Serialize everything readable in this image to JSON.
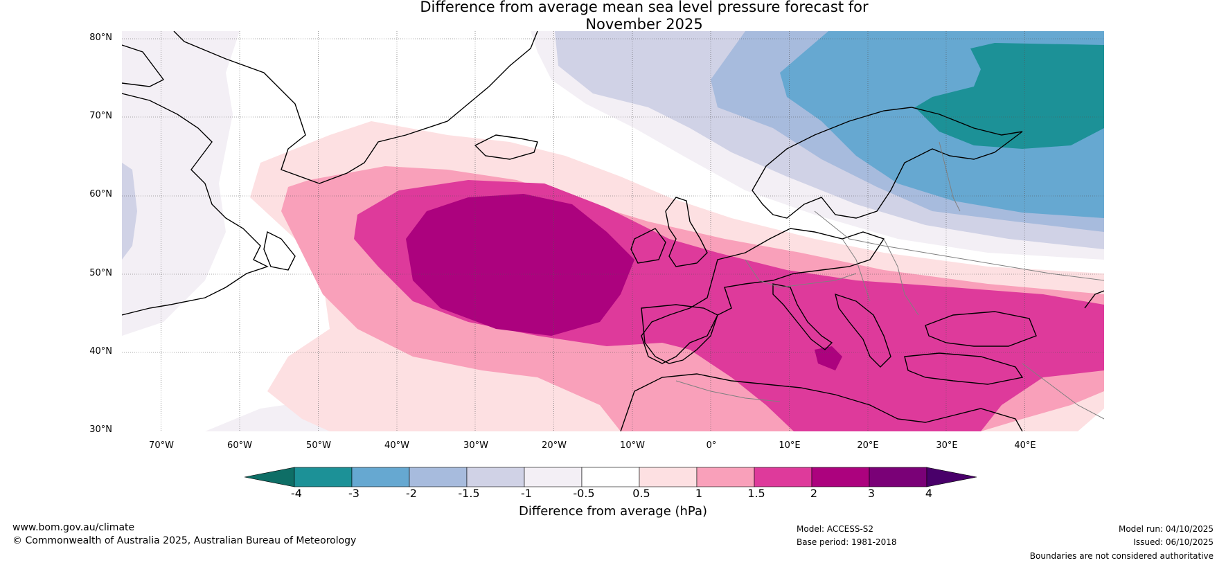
{
  "title": "Difference from average mean sea level pressure forecast for November 2025",
  "title_lines": [
    "Difference from average mean sea level pressure forecast for",
    "November 2025"
  ],
  "map": {
    "latitudes": [
      "80°N",
      "70°N",
      "60°N",
      "50°N",
      "40°N",
      "30°N"
    ],
    "longitudes": [
      "70°W",
      "60°W",
      "50°W",
      "40°W",
      "30°W",
      "20°W",
      "10°W",
      "0°",
      "10°E",
      "20°E",
      "30°E",
      "40°E"
    ],
    "lon_range": [
      -75,
      50
    ],
    "lat_range": [
      30,
      81
    ]
  },
  "colorbar": {
    "title": "Difference from average (hPa)",
    "tick_labels": [
      "-4",
      "-3",
      "-2",
      "-1.5",
      "-1",
      "-0.5",
      "0.5",
      "1",
      "1.5",
      "2",
      "3",
      "4"
    ],
    "colors": [
      "#0e6e66",
      "#1c9197",
      "#66a8d1",
      "#a7bbdd",
      "#d0d2e6",
      "#f3eff5",
      "#ffffff",
      "#fde0e2",
      "#f9a0ba",
      "#de3a9b",
      "#ac027e",
      "#7a0177",
      "#49006a"
    ]
  },
  "footer": {
    "website": "www.bom.gov.au/climate",
    "copyright": "© Commonwealth of Australia 2025, Australian Bureau of Meteorology",
    "model": "Model: ACCESS-S2",
    "base_period": "Base period: 1981-2018",
    "model_run": "Model run: 04/10/2025",
    "issued": "Issued: 06/10/2025",
    "disclaimer": "Boundaries are not considered authoritative"
  }
}
